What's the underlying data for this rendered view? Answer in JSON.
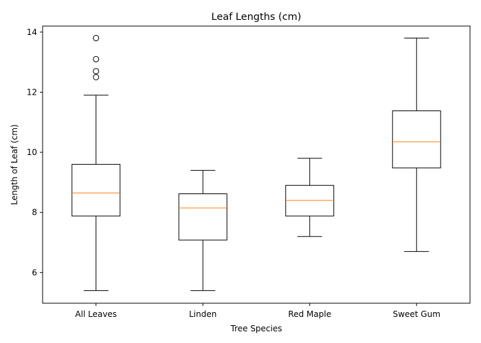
{
  "chart_data": {
    "type": "box",
    "title": "Leaf Lengths (cm)",
    "xlabel": "Tree Species",
    "ylabel": "Length of Leaf (cm)",
    "ylim": [
      4.98,
      14.2
    ],
    "yticks": [
      6,
      8,
      10,
      12,
      14
    ],
    "grid": false,
    "categories": [
      "All Leaves",
      "Linden",
      "Red Maple",
      "Sweet Gum"
    ],
    "boxes": [
      {
        "category": "All Leaves",
        "whisker_low": 5.4,
        "q1": 7.88,
        "median": 8.65,
        "q3": 9.6,
        "whisker_high": 11.9,
        "outliers": [
          12.5,
          12.7,
          13.1,
          13.8
        ]
      },
      {
        "category": "Linden",
        "whisker_low": 5.4,
        "q1": 7.08,
        "median": 8.15,
        "q3": 8.62,
        "whisker_high": 9.4,
        "outliers": []
      },
      {
        "category": "Red Maple",
        "whisker_low": 7.2,
        "q1": 7.88,
        "median": 8.4,
        "q3": 8.9,
        "whisker_high": 9.8,
        "outliers": []
      },
      {
        "category": "Sweet Gum",
        "whisker_low": 6.7,
        "q1": 9.48,
        "median": 10.35,
        "q3": 11.38,
        "whisker_high": 13.8,
        "outliers": []
      }
    ],
    "colors": {
      "box": "#000000",
      "median": "#ff7f0e"
    }
  }
}
